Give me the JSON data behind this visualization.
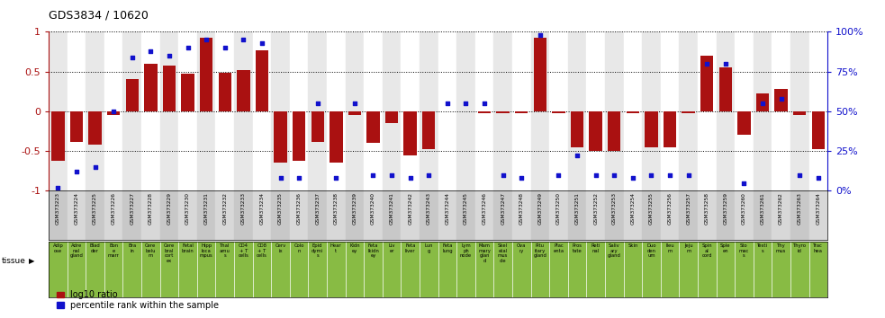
{
  "title": "GDS3834 / 10620",
  "gsm_labels": [
    "GSM373223",
    "GSM373224",
    "GSM373225",
    "GSM373226",
    "GSM373227",
    "GSM373228",
    "GSM373229",
    "GSM373230",
    "GSM373231",
    "GSM373232",
    "GSM373233",
    "GSM373234",
    "GSM373235",
    "GSM373236",
    "GSM373237",
    "GSM373238",
    "GSM373239",
    "GSM373240",
    "GSM373241",
    "GSM373242",
    "GSM373243",
    "GSM373244",
    "GSM373245",
    "GSM373246",
    "GSM373247",
    "GSM373248",
    "GSM373249",
    "GSM373250",
    "GSM373251",
    "GSM373252",
    "GSM373253",
    "GSM373254",
    "GSM373255",
    "GSM373256",
    "GSM373257",
    "GSM373258",
    "GSM373259",
    "GSM373260",
    "GSM373261",
    "GSM373262",
    "GSM373263",
    "GSM373264"
  ],
  "tissue_labels": [
    "Adip\nose",
    "Adre\nnal\ngland",
    "Blad\nder",
    "Bon\ne\nmarr",
    "Bra\nin",
    "Cere\nbelu\nm",
    "Cere\nbral\ncort\nex",
    "Fetal\nbrain",
    "Hipp\nloca\nmpus",
    "Thal\namu\ns",
    "CD4\n+ T\ncells",
    "CD8\n+ T\ncells",
    "Cerv\nix",
    "Colo\nn",
    "Epid\ndymi\ns",
    "Hear\nt",
    "Kidn\ney",
    "Feta\nlkidn\ney",
    "Liv\ner",
    "Feta\nliver",
    "Lun\ng",
    "Feta\nlung",
    "Lym\nph\nnode",
    "Mam\nmary\nglan\nd",
    "Skel\netal\nmus\ncle",
    "Ova\nry",
    "Pitu\nitary\ngland",
    "Plac\nenta",
    "Pros\ntate",
    "Reti\nnal",
    "Saliv\nary\ngland",
    "Skin",
    "Duo\nden\num",
    "Ileu\nm",
    "Jeju\nm",
    "Spin\nal\ncord",
    "Sple\nen",
    "Sto\nmac\ns",
    "Testi\ns",
    "Thy\nmus",
    "Thyro\nid",
    "Trac\nhea"
  ],
  "log10_ratio": [
    -0.62,
    -0.38,
    -0.42,
    -0.05,
    0.4,
    0.6,
    0.58,
    0.47,
    0.93,
    0.48,
    0.52,
    0.77,
    -0.65,
    -0.62,
    -0.38,
    -0.65,
    -0.05,
    -0.4,
    -0.15,
    -0.55,
    -0.48,
    0.0,
    0.0,
    -0.02,
    -0.02,
    -0.02,
    0.92,
    -0.02,
    -0.45,
    -0.5,
    -0.5,
    -0.02,
    -0.45,
    -0.45,
    -0.02,
    0.7,
    0.55,
    -0.3,
    0.22,
    0.28,
    -0.05,
    -0.48
  ],
  "percentile": [
    2,
    12,
    15,
    50,
    84,
    88,
    85,
    90,
    95,
    90,
    95,
    93,
    8,
    8,
    55,
    8,
    55,
    10,
    10,
    8,
    10,
    55,
    55,
    55,
    10,
    8,
    98,
    10,
    22,
    10,
    10,
    8,
    10,
    10,
    10,
    80,
    80,
    5,
    55,
    58,
    10,
    8
  ],
  "bar_color": "#aa1111",
  "dot_color": "#1111cc",
  "bg_colors_even": "#e8e8e8",
  "bg_colors_odd": "#ffffff",
  "gsm_bg_even": "#c8c8c8",
  "gsm_bg_odd": "#d8d8d8",
  "tissue_bg": "#88bb44",
  "ylim": [
    -1,
    1
  ],
  "right_ylim": [
    0,
    100
  ],
  "yticks": [
    -1,
    -0.5,
    0,
    0.5,
    1
  ],
  "right_yticks": [
    0,
    25,
    50,
    75,
    100
  ],
  "right_yticklabels": [
    "0%",
    "25%",
    "50%",
    "75%",
    "100%"
  ]
}
